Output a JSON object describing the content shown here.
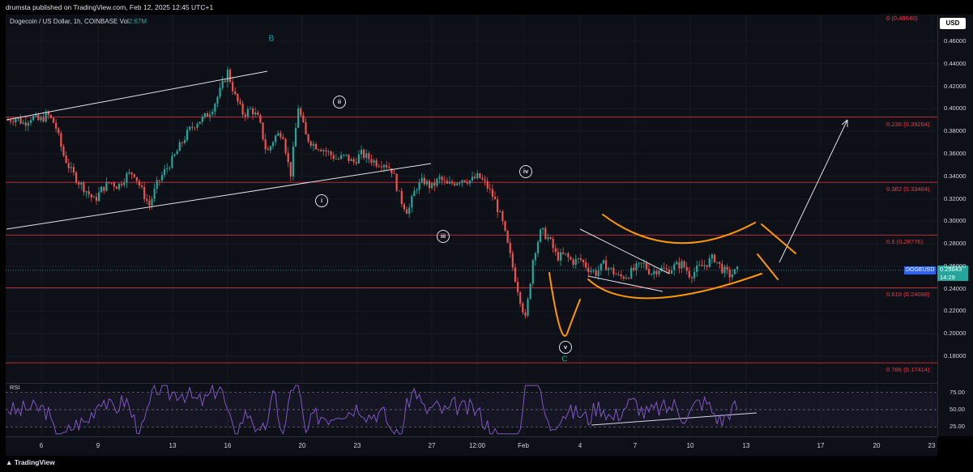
{
  "header": {
    "published": "drumsta published on TradingView.com, Feb 12, 2025 12:45 UTC+1"
  },
  "legend": {
    "symbol": "Dogecoin / US Dollar, 1h, COINBASE",
    "vol_label": "Vol",
    "vol_value": "2.67M"
  },
  "currency_button": "USD",
  "ticker_tag": "DOGEUSD",
  "price_tag": {
    "price": "0.25643",
    "countdown": "14:29"
  },
  "colors": {
    "up": "#26a69a",
    "down": "#ef5350",
    "fib": "#f23645",
    "orange": "#ff9800",
    "rsi": "#7e57c2",
    "trend": "#e0e3eb"
  },
  "chart_data": {
    "type": "candlestick",
    "symbol": "DOGEUSD",
    "timeframe": "1h",
    "y_axis": {
      "ticks": [
        "0.46000",
        "0.44000",
        "0.42000",
        "0.40000",
        "0.38000",
        "0.36000",
        "0.34000",
        "0.32000",
        "0.30000",
        "0.28000",
        "0.26000",
        "0.24000",
        "0.22000",
        "0.20000",
        "0.18000"
      ],
      "range": [
        0.168,
        0.482
      ]
    },
    "x_axis": {
      "ticks": [
        "6",
        "9",
        "13",
        "16",
        "20",
        "23",
        "27",
        "12:00",
        "Feb",
        "4",
        "7",
        "10",
        "13",
        "17",
        "20",
        "23"
      ]
    },
    "fib_levels": [
      {
        "label": "0 (0.48640)",
        "value": 0.4864
      },
      {
        "label": "0.236 (0.39264)",
        "value": 0.39264
      },
      {
        "label": "0.382 (0.33464)",
        "value": 0.33464
      },
      {
        "label": "0.5 (0.28776)",
        "value": 0.28776
      },
      {
        "label": "0.618 (0.24088)",
        "value": 0.24088
      },
      {
        "label": "0.786 (0.17414)",
        "value": 0.17414
      }
    ],
    "waves": [
      {
        "label": "B",
        "style": "plain"
      },
      {
        "label": "ii",
        "style": "circle"
      },
      {
        "label": "i",
        "style": "circle"
      },
      {
        "label": "iii",
        "style": "circle"
      },
      {
        "label": "iv",
        "style": "circle"
      },
      {
        "label": "v",
        "style": "circle"
      },
      {
        "label": "C",
        "style": "plain"
      }
    ],
    "price_path": [
      0.39,
      0.392,
      0.387,
      0.393,
      0.389,
      0.395,
      0.386,
      0.36,
      0.345,
      0.335,
      0.327,
      0.318,
      0.329,
      0.335,
      0.331,
      0.34,
      0.344,
      0.328,
      0.314,
      0.333,
      0.345,
      0.355,
      0.368,
      0.38,
      0.388,
      0.392,
      0.4,
      0.415,
      0.433,
      0.41,
      0.395,
      0.4,
      0.39,
      0.36,
      0.375,
      0.38,
      0.34,
      0.402,
      0.375,
      0.368,
      0.365,
      0.36,
      0.355,
      0.358,
      0.352,
      0.36,
      0.356,
      0.352,
      0.352,
      0.345,
      0.32,
      0.308,
      0.33,
      0.336,
      0.33,
      0.338,
      0.332,
      0.335,
      0.338,
      0.336,
      0.34,
      0.332,
      0.32,
      0.3,
      0.27,
      0.24,
      0.212,
      0.27,
      0.292,
      0.284,
      0.268,
      0.27,
      0.264,
      0.266,
      0.258,
      0.254,
      0.262,
      0.256,
      0.25,
      0.252,
      0.258,
      0.262,
      0.254,
      0.258,
      0.256,
      0.26,
      0.262,
      0.252,
      0.258,
      0.262,
      0.268,
      0.258,
      0.252,
      0.256
    ],
    "rsi": {
      "title": "RSI",
      "levels": [
        "75.00",
        "50.00",
        "25.00"
      ],
      "range": [
        20,
        80
      ],
      "bands": [
        70,
        50,
        30
      ]
    }
  }
}
